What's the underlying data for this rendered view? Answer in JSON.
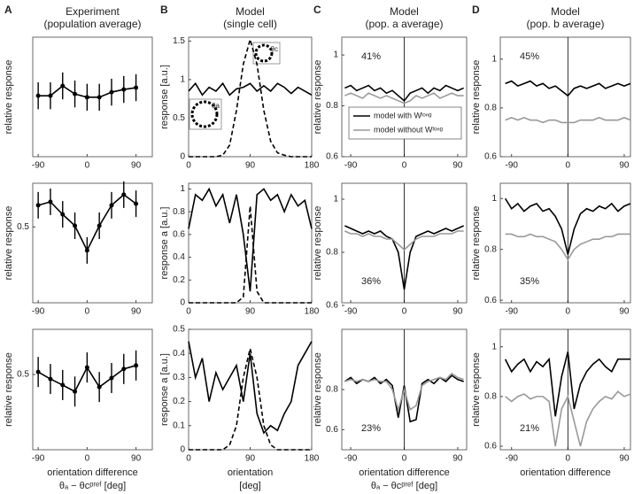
{
  "chart_data": [
    {
      "type": "line",
      "panel": "A",
      "title": [
        "Experiment",
        "(population average)"
      ],
      "ylabel": "relative response",
      "xlim": [
        -100,
        120
      ],
      "xticks": [
        -90,
        0,
        90
      ],
      "ylim": [
        0.3,
        0.7
      ],
      "x": [
        -90,
        -67.5,
        -45,
        -22.5,
        0,
        22.5,
        45,
        67.5,
        90
      ],
      "series": [
        {
          "color": "#000000",
          "values": [
            0.504,
            0.504,
            0.537,
            0.51,
            0.499,
            0.499,
            0.516,
            0.525,
            0.531
          ],
          "errors": [
            0.045,
            0.045,
            0.045,
            0.045,
            0.045,
            0.045,
            0.045,
            0.045,
            0.045
          ]
        }
      ]
    },
    {
      "type": "line",
      "ylabel": "relative response",
      "xlim": [
        -100,
        120
      ],
      "xticks": [
        -90,
        0,
        90
      ],
      "ylim": [
        0.3,
        0.615
      ],
      "yticks": [
        0.5
      ],
      "x": [
        -90,
        -67.5,
        -45,
        -22.5,
        0,
        22.5,
        45,
        67.5,
        90
      ],
      "series": [
        {
          "color": "#000000",
          "values": [
            0.557,
            0.566,
            0.533,
            0.503,
            0.438,
            0.503,
            0.557,
            0.585,
            0.561
          ],
          "errors": [
            0.035,
            0.035,
            0.035,
            0.035,
            0.035,
            0.035,
            0.035,
            0.035,
            0.035
          ]
        }
      ]
    },
    {
      "type": "line",
      "ylabel": "relative response",
      "xlabel": "orientation difference",
      "xlabel2": "θₐ − θcᵖʳᵉᶠ [deg]",
      "xlim": [
        -100,
        120
      ],
      "xticks": [
        -90,
        0,
        90
      ],
      "ylim": [
        0.35,
        0.59
      ],
      "yticks": [
        0.5
      ],
      "x": [
        -90,
        -67.5,
        -45,
        -22.5,
        0,
        22.5,
        45,
        67.5,
        90
      ],
      "series": [
        {
          "color": "#000000",
          "values": [
            0.505,
            0.491,
            0.479,
            0.466,
            0.514,
            0.475,
            0.493,
            0.511,
            0.518
          ],
          "errors": [
            0.03,
            0.03,
            0.03,
            0.03,
            0.03,
            0.03,
            0.03,
            0.03,
            0.03
          ]
        }
      ]
    },
    {
      "type": "line",
      "panel": "B",
      "title": [
        "Model",
        "(single cell)"
      ],
      "ylabel": "response [a.u.]",
      "xlim": [
        0,
        180
      ],
      "xticks": [
        0,
        90,
        180
      ],
      "ylim": [
        0,
        1.55
      ],
      "yticks": [
        0,
        0.5,
        1,
        1.5
      ],
      "inset_labels": [
        "θc",
        "θa"
      ],
      "x": [
        0,
        10,
        20,
        30,
        40,
        50,
        60,
        70,
        80,
        90,
        100,
        110,
        120,
        130,
        140,
        150,
        160,
        170,
        180
      ],
      "series": [
        {
          "color": "#000000",
          "values": [
            0.85,
            0.95,
            0.8,
            0.9,
            0.85,
            0.95,
            0.8,
            0.88,
            0.9,
            0.95,
            0.85,
            0.92,
            0.85,
            0.95,
            0.9,
            0.82,
            0.9,
            0.85,
            0.8
          ]
        },
        {
          "color": "#000000",
          "dash": true,
          "values": [
            0,
            0,
            0,
            0,
            0,
            0.02,
            0.15,
            0.6,
            1.2,
            1.52,
            1.2,
            0.6,
            0.2,
            0.05,
            0.02,
            0,
            0,
            0,
            0
          ]
        }
      ]
    },
    {
      "type": "line",
      "ylabel": "response a [a.u.]",
      "xlim": [
        0,
        180
      ],
      "xticks": [
        0,
        90,
        180
      ],
      "ylim": [
        0,
        1.05
      ],
      "yticks": [
        0,
        0.2,
        0.4,
        0.6,
        0.8,
        1
      ],
      "x": [
        0,
        10,
        20,
        30,
        40,
        50,
        60,
        70,
        80,
        90,
        100,
        110,
        120,
        130,
        140,
        150,
        160,
        170,
        180
      ],
      "series": [
        {
          "color": "#000000",
          "values": [
            0.65,
            0.95,
            0.9,
            1.0,
            0.85,
            0.95,
            0.7,
            0.95,
            0.6,
            0.1,
            0.95,
            1.0,
            0.9,
            0.95,
            0.8,
            0.95,
            0.85,
            0.9,
            0.65
          ]
        },
        {
          "color": "#000000",
          "dash": true,
          "values": [
            0,
            0,
            0,
            0,
            0,
            0,
            0,
            0,
            0.05,
            0.85,
            0.1,
            0,
            0,
            0,
            0,
            0,
            0,
            0,
            0
          ]
        }
      ]
    },
    {
      "type": "line",
      "ylabel": "response a [a.u.]",
      "xlabel": "orientation",
      "xlabel2": "[deg]",
      "xlim": [
        0,
        180
      ],
      "xticks": [
        0,
        90,
        180
      ],
      "ylim": [
        0,
        0.5
      ],
      "yticks": [
        0,
        0.1,
        0.2,
        0.3,
        0.4,
        0.5
      ],
      "x": [
        0,
        10,
        20,
        30,
        40,
        50,
        60,
        70,
        80,
        90,
        100,
        110,
        120,
        130,
        140,
        150,
        160,
        170,
        180
      ],
      "series": [
        {
          "color": "#000000",
          "values": [
            0.45,
            0.3,
            0.38,
            0.2,
            0.32,
            0.25,
            0.3,
            0.35,
            0.2,
            0.4,
            0.15,
            0.07,
            0.1,
            0.08,
            0.15,
            0.2,
            0.35,
            0.4,
            0.45
          ]
        },
        {
          "color": "#000000",
          "dash": true,
          "values": [
            0,
            0,
            0,
            0,
            0,
            0,
            0.02,
            0.1,
            0.3,
            0.42,
            0.3,
            0.1,
            0.02,
            0,
            0,
            0,
            0,
            0,
            0
          ]
        }
      ]
    },
    {
      "type": "line",
      "panel": "C",
      "title": [
        "Model",
        "(pop. a average)"
      ],
      "ylabel": "relative response",
      "xlim": [
        -105,
        105
      ],
      "xticks": [
        -90,
        0,
        90
      ],
      "ylim": [
        0.6,
        1.07
      ],
      "yticks": [
        0.6,
        0.8,
        1
      ],
      "zero_line": true,
      "annotation": "41%",
      "annotation_corner": "top",
      "legend": "lower",
      "x": [
        -100,
        -90,
        -80,
        -70,
        -60,
        -50,
        -40,
        -30,
        -20,
        -10,
        0,
        10,
        20,
        30,
        40,
        50,
        60,
        70,
        80,
        90,
        100
      ],
      "series": [
        {
          "name": "model with Wˡᵒⁿᵍ",
          "color": "#000000",
          "values": [
            0.87,
            0.88,
            0.86,
            0.87,
            0.88,
            0.86,
            0.87,
            0.85,
            0.86,
            0.84,
            0.82,
            0.85,
            0.86,
            0.87,
            0.85,
            0.87,
            0.86,
            0.88,
            0.87,
            0.86,
            0.87
          ]
        },
        {
          "name": "model without Wˡᵒⁿᵍ",
          "color": "#999999",
          "values": [
            0.84,
            0.85,
            0.84,
            0.83,
            0.85,
            0.84,
            0.83,
            0.84,
            0.83,
            0.82,
            0.81,
            0.82,
            0.84,
            0.83,
            0.84,
            0.85,
            0.83,
            0.84,
            0.85,
            0.84,
            0.84
          ]
        }
      ]
    },
    {
      "type": "line",
      "ylabel": "relative response",
      "xlim": [
        -105,
        105
      ],
      "xticks": [
        -90,
        0,
        90
      ],
      "ylim": [
        0.61,
        1.06
      ],
      "yticks": [
        0.6,
        0.8,
        1
      ],
      "zero_line": true,
      "annotation": "36%",
      "annotation_corner": "bottom",
      "x": [
        -100,
        -90,
        -80,
        -70,
        -60,
        -50,
        -40,
        -30,
        -20,
        -10,
        0,
        10,
        20,
        30,
        40,
        50,
        60,
        70,
        80,
        90,
        100
      ],
      "series": [
        {
          "color": "#000000",
          "values": [
            0.9,
            0.89,
            0.88,
            0.87,
            0.88,
            0.87,
            0.88,
            0.86,
            0.85,
            0.8,
            0.66,
            0.8,
            0.86,
            0.87,
            0.88,
            0.87,
            0.88,
            0.89,
            0.88,
            0.89,
            0.9
          ]
        },
        {
          "color": "#999999",
          "values": [
            0.88,
            0.87,
            0.87,
            0.86,
            0.87,
            0.86,
            0.86,
            0.85,
            0.85,
            0.83,
            0.81,
            0.83,
            0.85,
            0.86,
            0.86,
            0.86,
            0.87,
            0.87,
            0.87,
            0.88,
            0.88
          ]
        }
      ]
    },
    {
      "type": "line",
      "ylabel": "relative response",
      "xlabel": "orientation difference",
      "xlabel2": "θₐ − θcᵖʳᵉᶠ [deg]",
      "xlim": [
        -105,
        105
      ],
      "xticks": [
        -90,
        0,
        90
      ],
      "ylim": [
        0.5,
        1.1
      ],
      "yticks": [
        0.6,
        0.8
      ],
      "zero_line": true,
      "annotation": "23%",
      "annotation_corner": "bottom",
      "x": [
        -100,
        -90,
        -80,
        -70,
        -60,
        -50,
        -40,
        -30,
        -20,
        -10,
        0,
        10,
        20,
        30,
        40,
        50,
        60,
        70,
        80,
        90,
        100
      ],
      "series": [
        {
          "color": "#000000",
          "values": [
            0.84,
            0.86,
            0.83,
            0.85,
            0.84,
            0.86,
            0.83,
            0.85,
            0.82,
            0.66,
            0.82,
            0.64,
            0.65,
            0.83,
            0.85,
            0.83,
            0.86,
            0.84,
            0.87,
            0.85,
            0.84
          ]
        },
        {
          "color": "#999999",
          "values": [
            0.84,
            0.85,
            0.84,
            0.85,
            0.84,
            0.85,
            0.84,
            0.84,
            0.8,
            0.7,
            0.8,
            0.7,
            0.72,
            0.82,
            0.84,
            0.85,
            0.86,
            0.85,
            0.88,
            0.86,
            0.85
          ]
        }
      ]
    },
    {
      "type": "line",
      "panel": "D",
      "title": [
        "Model",
        "(pop. b average)"
      ],
      "ylabel": "relative response",
      "xlim": [
        -108,
        100
      ],
      "xticks": [
        -90,
        0,
        90
      ],
      "ylim": [
        0.6,
        1.09
      ],
      "yticks": [
        0.6,
        0.8,
        1
      ],
      "zero_line": true,
      "annotation": "45%",
      "annotation_corner": "top",
      "x": [
        -100,
        -90,
        -80,
        -70,
        -60,
        -50,
        -40,
        -30,
        -20,
        -10,
        0,
        10,
        20,
        30,
        40,
        50,
        60,
        70,
        80,
        90,
        100
      ],
      "series": [
        {
          "color": "#000000",
          "values": [
            0.9,
            0.91,
            0.89,
            0.9,
            0.91,
            0.89,
            0.9,
            0.88,
            0.89,
            0.87,
            0.85,
            0.88,
            0.89,
            0.88,
            0.89,
            0.9,
            0.88,
            0.89,
            0.9,
            0.89,
            0.9
          ]
        },
        {
          "color": "#999999",
          "values": [
            0.75,
            0.76,
            0.75,
            0.76,
            0.75,
            0.75,
            0.74,
            0.75,
            0.75,
            0.74,
            0.74,
            0.74,
            0.75,
            0.75,
            0.75,
            0.76,
            0.75,
            0.75,
            0.75,
            0.76,
            0.75
          ]
        }
      ]
    },
    {
      "type": "line",
      "ylabel": "relative response",
      "xlim": [
        -108,
        100
      ],
      "xticks": [
        -90,
        0,
        90
      ],
      "ylim": [
        0.59,
        1.06
      ],
      "yticks": [
        0.6,
        0.8,
        1
      ],
      "zero_line": true,
      "annotation": "35%",
      "annotation_corner": "bottom",
      "x": [
        -100,
        -90,
        -80,
        -70,
        -60,
        -50,
        -40,
        -30,
        -20,
        -10,
        0,
        10,
        20,
        30,
        40,
        50,
        60,
        70,
        80,
        90,
        100
      ],
      "series": [
        {
          "color": "#000000",
          "values": [
            1.0,
            0.96,
            0.98,
            0.95,
            0.97,
            0.98,
            0.95,
            0.96,
            0.93,
            0.88,
            0.78,
            0.88,
            0.94,
            0.96,
            0.95,
            0.97,
            0.96,
            0.98,
            0.95,
            0.97,
            0.98
          ]
        },
        {
          "color": "#999999",
          "values": [
            0.86,
            0.86,
            0.85,
            0.85,
            0.86,
            0.85,
            0.85,
            0.84,
            0.83,
            0.8,
            0.76,
            0.8,
            0.82,
            0.83,
            0.84,
            0.84,
            0.85,
            0.85,
            0.86,
            0.86,
            0.86
          ]
        }
      ]
    },
    {
      "type": "line",
      "ylabel": "relative response",
      "xlabel": "orientation difference",
      "xlim": [
        -108,
        100
      ],
      "xticks": [
        -90,
        0,
        90
      ],
      "ylim": [
        0.586,
        1.07
      ],
      "yticks": [
        0.6,
        0.8,
        1
      ],
      "zero_line": true,
      "annotation": "21%",
      "annotation_corner": "bottom",
      "x": [
        -100,
        -90,
        -80,
        -70,
        -60,
        -50,
        -40,
        -30,
        -20,
        -10,
        0,
        10,
        20,
        30,
        40,
        50,
        60,
        70,
        80,
        90,
        100
      ],
      "series": [
        {
          "color": "#000000",
          "values": [
            0.95,
            0.9,
            0.93,
            0.95,
            0.9,
            0.94,
            0.92,
            0.95,
            0.72,
            0.88,
            0.98,
            0.75,
            0.85,
            0.9,
            0.93,
            0.95,
            0.92,
            0.9,
            0.95,
            0.95,
            0.95
          ]
        },
        {
          "color": "#999999",
          "values": [
            0.8,
            0.78,
            0.8,
            0.81,
            0.79,
            0.8,
            0.8,
            0.78,
            0.6,
            0.75,
            0.8,
            0.7,
            0.6,
            0.7,
            0.75,
            0.78,
            0.8,
            0.79,
            0.82,
            0.8,
            0.81
          ]
        }
      ]
    }
  ]
}
